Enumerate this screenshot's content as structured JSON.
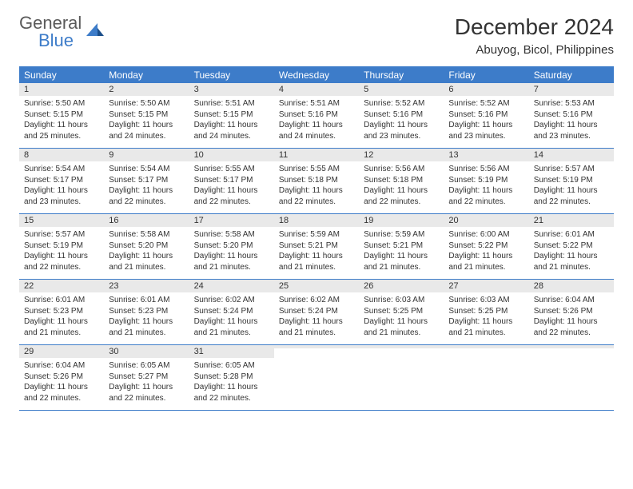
{
  "logo": {
    "word1": "General",
    "word2": "Blue"
  },
  "title": "December 2024",
  "location": "Abuyog, Bicol, Philippines",
  "colors": {
    "brand_blue": "#3d7cc9",
    "header_bg": "#3d7cc9",
    "header_text": "#ffffff",
    "daynum_bg": "#e9e9e9",
    "text": "#333333",
    "background": "#ffffff"
  },
  "typography": {
    "title_fontsize": 28,
    "location_fontsize": 15,
    "dayheader_fontsize": 12,
    "daynum_fontsize": 11,
    "body_fontsize": 10
  },
  "calendar": {
    "day_headers": [
      "Sunday",
      "Monday",
      "Tuesday",
      "Wednesday",
      "Thursday",
      "Friday",
      "Saturday"
    ],
    "weeks": [
      [
        {
          "num": "1",
          "sunrise": "Sunrise: 5:50 AM",
          "sunset": "Sunset: 5:15 PM",
          "daylight": "Daylight: 11 hours\nand 25 minutes."
        },
        {
          "num": "2",
          "sunrise": "Sunrise: 5:50 AM",
          "sunset": "Sunset: 5:15 PM",
          "daylight": "Daylight: 11 hours\nand 24 minutes."
        },
        {
          "num": "3",
          "sunrise": "Sunrise: 5:51 AM",
          "sunset": "Sunset: 5:15 PM",
          "daylight": "Daylight: 11 hours\nand 24 minutes."
        },
        {
          "num": "4",
          "sunrise": "Sunrise: 5:51 AM",
          "sunset": "Sunset: 5:16 PM",
          "daylight": "Daylight: 11 hours\nand 24 minutes."
        },
        {
          "num": "5",
          "sunrise": "Sunrise: 5:52 AM",
          "sunset": "Sunset: 5:16 PM",
          "daylight": "Daylight: 11 hours\nand 23 minutes."
        },
        {
          "num": "6",
          "sunrise": "Sunrise: 5:52 AM",
          "sunset": "Sunset: 5:16 PM",
          "daylight": "Daylight: 11 hours\nand 23 minutes."
        },
        {
          "num": "7",
          "sunrise": "Sunrise: 5:53 AM",
          "sunset": "Sunset: 5:16 PM",
          "daylight": "Daylight: 11 hours\nand 23 minutes."
        }
      ],
      [
        {
          "num": "8",
          "sunrise": "Sunrise: 5:54 AM",
          "sunset": "Sunset: 5:17 PM",
          "daylight": "Daylight: 11 hours\nand 23 minutes."
        },
        {
          "num": "9",
          "sunrise": "Sunrise: 5:54 AM",
          "sunset": "Sunset: 5:17 PM",
          "daylight": "Daylight: 11 hours\nand 22 minutes."
        },
        {
          "num": "10",
          "sunrise": "Sunrise: 5:55 AM",
          "sunset": "Sunset: 5:17 PM",
          "daylight": "Daylight: 11 hours\nand 22 minutes."
        },
        {
          "num": "11",
          "sunrise": "Sunrise: 5:55 AM",
          "sunset": "Sunset: 5:18 PM",
          "daylight": "Daylight: 11 hours\nand 22 minutes."
        },
        {
          "num": "12",
          "sunrise": "Sunrise: 5:56 AM",
          "sunset": "Sunset: 5:18 PM",
          "daylight": "Daylight: 11 hours\nand 22 minutes."
        },
        {
          "num": "13",
          "sunrise": "Sunrise: 5:56 AM",
          "sunset": "Sunset: 5:19 PM",
          "daylight": "Daylight: 11 hours\nand 22 minutes."
        },
        {
          "num": "14",
          "sunrise": "Sunrise: 5:57 AM",
          "sunset": "Sunset: 5:19 PM",
          "daylight": "Daylight: 11 hours\nand 22 minutes."
        }
      ],
      [
        {
          "num": "15",
          "sunrise": "Sunrise: 5:57 AM",
          "sunset": "Sunset: 5:19 PM",
          "daylight": "Daylight: 11 hours\nand 22 minutes."
        },
        {
          "num": "16",
          "sunrise": "Sunrise: 5:58 AM",
          "sunset": "Sunset: 5:20 PM",
          "daylight": "Daylight: 11 hours\nand 21 minutes."
        },
        {
          "num": "17",
          "sunrise": "Sunrise: 5:58 AM",
          "sunset": "Sunset: 5:20 PM",
          "daylight": "Daylight: 11 hours\nand 21 minutes."
        },
        {
          "num": "18",
          "sunrise": "Sunrise: 5:59 AM",
          "sunset": "Sunset: 5:21 PM",
          "daylight": "Daylight: 11 hours\nand 21 minutes."
        },
        {
          "num": "19",
          "sunrise": "Sunrise: 5:59 AM",
          "sunset": "Sunset: 5:21 PM",
          "daylight": "Daylight: 11 hours\nand 21 minutes."
        },
        {
          "num": "20",
          "sunrise": "Sunrise: 6:00 AM",
          "sunset": "Sunset: 5:22 PM",
          "daylight": "Daylight: 11 hours\nand 21 minutes."
        },
        {
          "num": "21",
          "sunrise": "Sunrise: 6:01 AM",
          "sunset": "Sunset: 5:22 PM",
          "daylight": "Daylight: 11 hours\nand 21 minutes."
        }
      ],
      [
        {
          "num": "22",
          "sunrise": "Sunrise: 6:01 AM",
          "sunset": "Sunset: 5:23 PM",
          "daylight": "Daylight: 11 hours\nand 21 minutes."
        },
        {
          "num": "23",
          "sunrise": "Sunrise: 6:01 AM",
          "sunset": "Sunset: 5:23 PM",
          "daylight": "Daylight: 11 hours\nand 21 minutes."
        },
        {
          "num": "24",
          "sunrise": "Sunrise: 6:02 AM",
          "sunset": "Sunset: 5:24 PM",
          "daylight": "Daylight: 11 hours\nand 21 minutes."
        },
        {
          "num": "25",
          "sunrise": "Sunrise: 6:02 AM",
          "sunset": "Sunset: 5:24 PM",
          "daylight": "Daylight: 11 hours\nand 21 minutes."
        },
        {
          "num": "26",
          "sunrise": "Sunrise: 6:03 AM",
          "sunset": "Sunset: 5:25 PM",
          "daylight": "Daylight: 11 hours\nand 21 minutes."
        },
        {
          "num": "27",
          "sunrise": "Sunrise: 6:03 AM",
          "sunset": "Sunset: 5:25 PM",
          "daylight": "Daylight: 11 hours\nand 21 minutes."
        },
        {
          "num": "28",
          "sunrise": "Sunrise: 6:04 AM",
          "sunset": "Sunset: 5:26 PM",
          "daylight": "Daylight: 11 hours\nand 22 minutes."
        }
      ],
      [
        {
          "num": "29",
          "sunrise": "Sunrise: 6:04 AM",
          "sunset": "Sunset: 5:26 PM",
          "daylight": "Daylight: 11 hours\nand 22 minutes."
        },
        {
          "num": "30",
          "sunrise": "Sunrise: 6:05 AM",
          "sunset": "Sunset: 5:27 PM",
          "daylight": "Daylight: 11 hours\nand 22 minutes."
        },
        {
          "num": "31",
          "sunrise": "Sunrise: 6:05 AM",
          "sunset": "Sunset: 5:28 PM",
          "daylight": "Daylight: 11 hours\nand 22 minutes."
        },
        {
          "num": "",
          "sunrise": "",
          "sunset": "",
          "daylight": ""
        },
        {
          "num": "",
          "sunrise": "",
          "sunset": "",
          "daylight": ""
        },
        {
          "num": "",
          "sunrise": "",
          "sunset": "",
          "daylight": ""
        },
        {
          "num": "",
          "sunrise": "",
          "sunset": "",
          "daylight": ""
        }
      ]
    ]
  }
}
